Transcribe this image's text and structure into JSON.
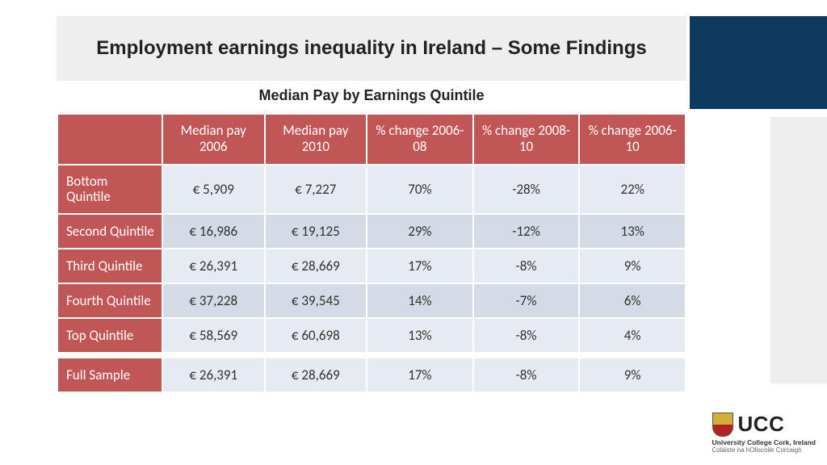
{
  "title": "Employment earnings inequality in Ireland – Some Findings",
  "subtitle": "Median Pay by Earnings Quintile",
  "colors": {
    "header_bg": "#c15656",
    "header_text": "#ffffff",
    "row_odd_bg": "#e6ebf2",
    "row_even_bg": "#d3dbe7",
    "navy_block": "#0f3a5f",
    "gray_block": "#eeeeee",
    "title_bar_bg": "#eeeeee"
  },
  "table": {
    "columns": [
      "",
      "Median pay 2006",
      "Median pay 2010",
      "% change 2006-08",
      "% change 2008-10",
      "% change 2006-10"
    ],
    "rows": [
      {
        "label": "Bottom Quintile",
        "cells": [
          "€ 5,909",
          "€ 7,227",
          "70%",
          "-28%",
          "22%"
        ]
      },
      {
        "label": "Second Quintile",
        "cells": [
          "€ 16,986",
          "€ 19,125",
          "29%",
          "-12%",
          "13%"
        ]
      },
      {
        "label": "Third Quintile",
        "cells": [
          "€ 26,391",
          "€ 28,669",
          "17%",
          "-8%",
          "9%"
        ]
      },
      {
        "label": "Fourth Quintile",
        "cells": [
          "€ 37,228",
          "€ 39,545",
          "14%",
          "-7%",
          "6%"
        ]
      },
      {
        "label": "Top Quintile",
        "cells": [
          "€ 58,569",
          "€ 60,698",
          "13%",
          "-8%",
          "4%"
        ]
      }
    ],
    "summary": {
      "label": "Full Sample",
      "cells": [
        "€ 26,391",
        "€ 28,669",
        "17%",
        "-8%",
        "9%"
      ]
    }
  },
  "logo": {
    "acronym": "UCC",
    "line1": "University College Cork, Ireland",
    "line2": "Coláiste na hOllscoile Corcaigh"
  }
}
